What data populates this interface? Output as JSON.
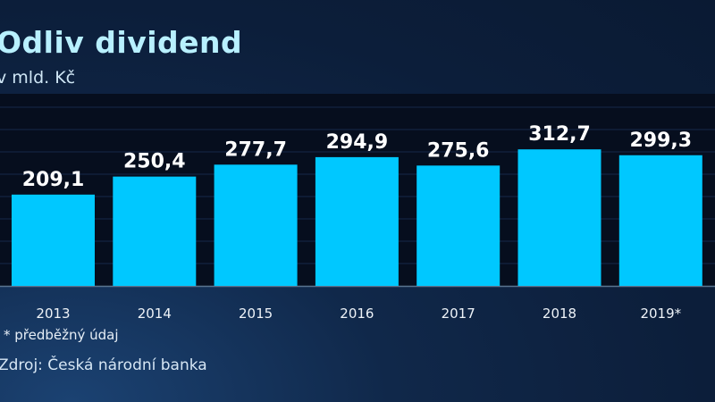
{
  "chart_data": {
    "type": "bar",
    "title": "Odliv dividend",
    "subtitle": "v mld. Kč",
    "categories": [
      "2013",
      "2014",
      "2015",
      "2016",
      "2017",
      "2018",
      "2019*"
    ],
    "values": [
      209.1,
      250.4,
      277.7,
      294.9,
      275.6,
      312.7,
      299.3
    ],
    "value_labels": [
      "209,1",
      "250,4",
      "277,7",
      "294,9",
      "275,6",
      "312,7",
      "299,3"
    ],
    "ylim": [
      0,
      440
    ],
    "grid": true,
    "bar_color": "#00c8ff",
    "note": "* předběžný údaj",
    "source": "Zdroj: Česká národní banka"
  }
}
